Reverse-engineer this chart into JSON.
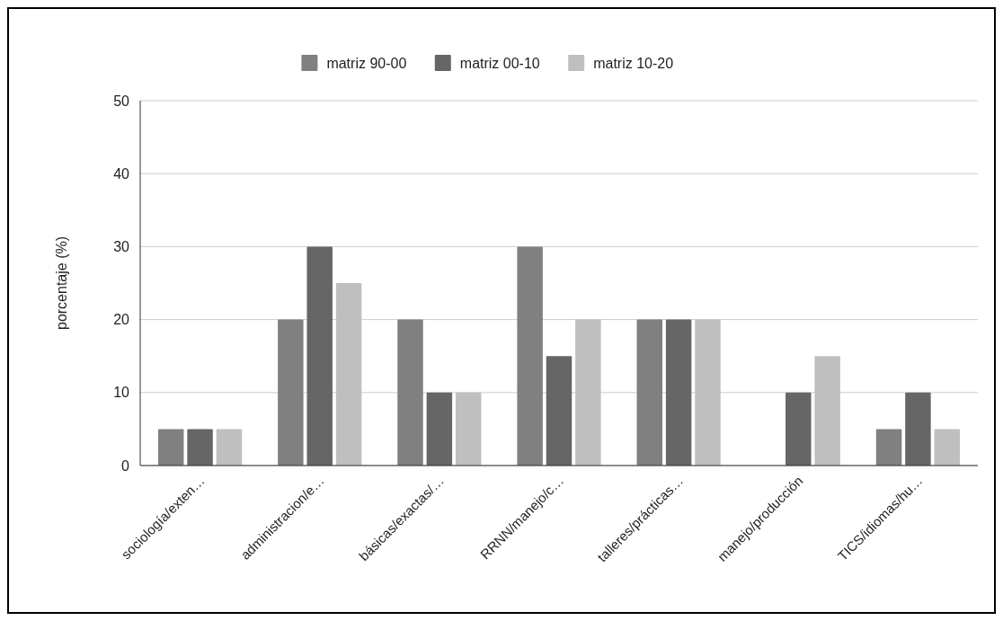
{
  "chart_data": {
    "type": "bar",
    "ylabel": "porcentaje (%)",
    "categories": [
      "sociología/exten…",
      "administracion/e…",
      "básicas/exactas/…",
      "RRNN/manejo/c…",
      "talleres/prácticas…",
      "manejo/producción",
      "TICS/idiomas/hu…"
    ],
    "series": [
      {
        "name": "matriz 90-00",
        "color": "#808080",
        "values": [
          5,
          20,
          20,
          30,
          20,
          0,
          5
        ]
      },
      {
        "name": "matriz 00-10",
        "color": "#666666",
        "values": [
          5,
          30,
          10,
          15,
          20,
          10,
          10
        ]
      },
      {
        "name": "matriz 10-20",
        "color": "#bfbfbf",
        "values": [
          5,
          25,
          10,
          20,
          20,
          15,
          5
        ]
      }
    ],
    "ylim": [
      0,
      50
    ],
    "yticks": [
      0,
      10,
      20,
      30,
      40,
      50
    ],
    "grid": "y",
    "legend": "top"
  }
}
